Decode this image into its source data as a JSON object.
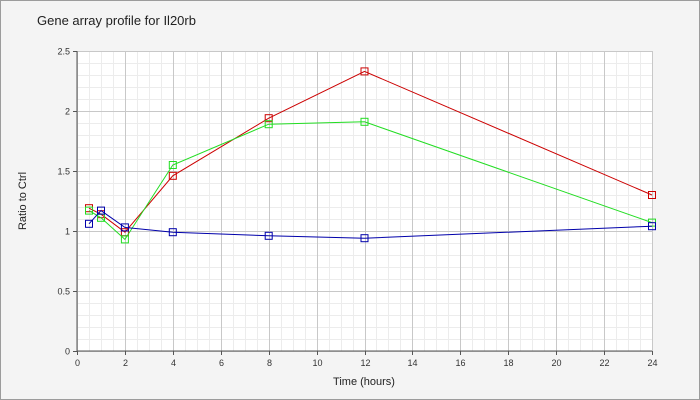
{
  "chart_data": {
    "type": "line",
    "title": "Gene array profile for Il20rb",
    "xlabel": "Time (hours)",
    "ylabel": "Ratio to Ctrl",
    "xlim": [
      0,
      24
    ],
    "ylim": [
      0,
      2.5
    ],
    "x_ticks": [
      0,
      2,
      4,
      6,
      8,
      10,
      12,
      14,
      16,
      18,
      20,
      22,
      24
    ],
    "y_ticks": [
      0,
      0.5,
      1,
      1.5,
      2,
      2.5
    ],
    "grid": true,
    "legend": "none",
    "series": [
      {
        "color": "#cc0000",
        "x": [
          0.5,
          1,
          2,
          4,
          8,
          12,
          24
        ],
        "y": [
          1.19,
          1.14,
          0.99,
          1.46,
          1.94,
          2.33,
          1.3
        ]
      },
      {
        "color": "#22dd22",
        "x": [
          0.5,
          1,
          2,
          4,
          8,
          12,
          24
        ],
        "y": [
          1.17,
          1.11,
          0.93,
          1.55,
          1.89,
          1.91,
          1.07
        ]
      },
      {
        "color": "#0000aa",
        "x": [
          0.5,
          1,
          2,
          4,
          8,
          12,
          24
        ],
        "y": [
          1.06,
          1.17,
          1.03,
          0.99,
          0.96,
          0.94,
          1.04
        ]
      }
    ]
  }
}
